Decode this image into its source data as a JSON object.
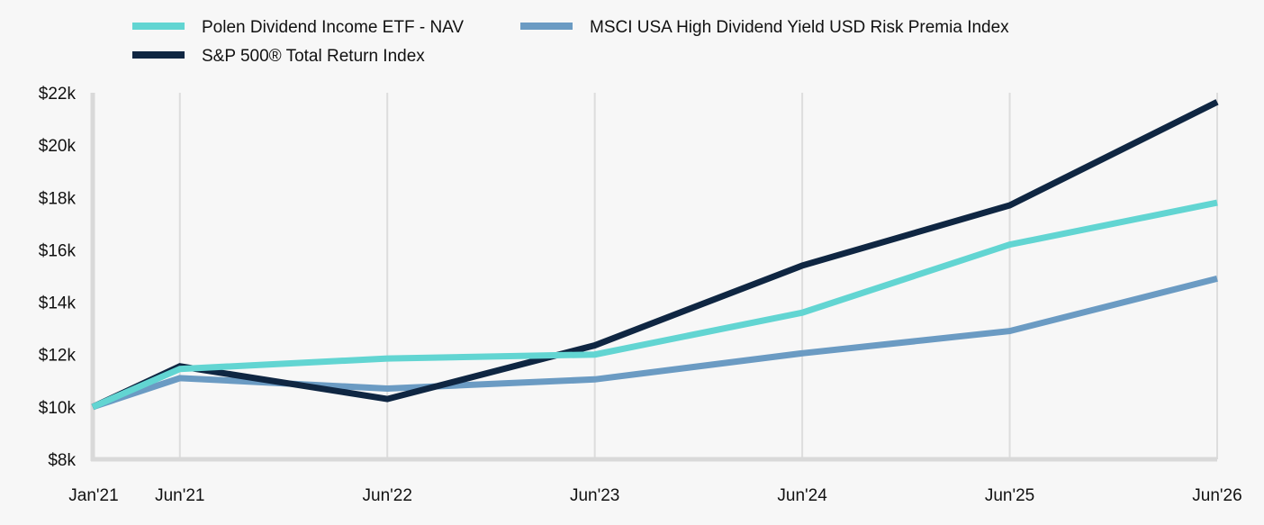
{
  "chart_data": {
    "type": "line",
    "title": "",
    "xlabel": "",
    "ylabel": "",
    "x": [
      "Jan'21",
      "Jun'21",
      "Jun'22",
      "Jun'23",
      "Jun'24",
      "Jun'25",
      "Jun'26"
    ],
    "x_positions_years": [
      0,
      0.42,
      1.42,
      2.42,
      3.42,
      4.42,
      5.42
    ],
    "ylim": [
      8000,
      22000
    ],
    "yticks": [
      8000,
      10000,
      12000,
      14000,
      16000,
      18000,
      20000,
      22000
    ],
    "ytick_labels": [
      "$8k",
      "$10k",
      "$12k",
      "$14k",
      "$16k",
      "$18k",
      "$20k",
      "$22k"
    ],
    "grid": "vertical",
    "legend_position": "top",
    "series": [
      {
        "name": "Polen Dividend Income ETF - NAV",
        "color": "#62d5d2",
        "values": [
          10000,
          11450,
          11850,
          12000,
          13600,
          16200,
          17800
        ]
      },
      {
        "name": "MSCI USA High Dividend Yield USD Risk Premia Index",
        "color": "#6b9bc3",
        "values": [
          10000,
          11100,
          10700,
          11050,
          12050,
          12900,
          14900
        ]
      },
      {
        "name": "S&P 500® Total Return Index",
        "color": "#0f2642",
        "values": [
          10000,
          11550,
          10300,
          12350,
          15400,
          17700,
          21650
        ]
      }
    ]
  }
}
